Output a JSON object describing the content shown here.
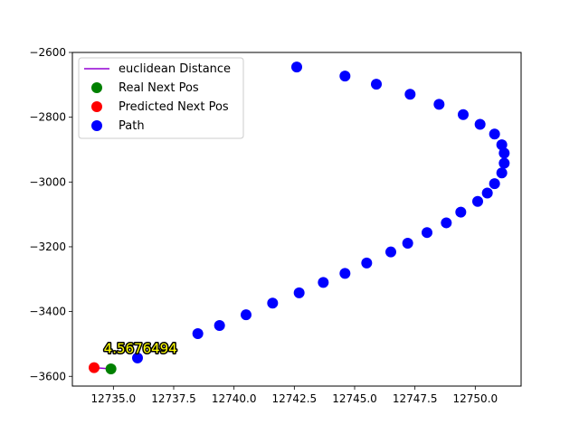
{
  "chart_data": {
    "type": "scatter",
    "title": "",
    "xlabel": "",
    "ylabel": "",
    "xlim": [
      12733.3,
      12751.9
    ],
    "ylim": [
      -3630,
      -2600
    ],
    "xticks": [
      12735.0,
      12737.5,
      12740.0,
      12742.5,
      12745.0,
      12747.5,
      12750.0
    ],
    "xtick_labels": [
      "12735.0",
      "12737.5",
      "12740.0",
      "12742.5",
      "12745.0",
      "12747.5",
      "12750.0"
    ],
    "yticks": [
      -2600,
      -2800,
      -3000,
      -3200,
      -3400,
      -3600
    ],
    "ytick_labels": [
      "−2600",
      "−2800",
      "−3000",
      "−3200",
      "−3400",
      "−3600"
    ],
    "grid": false,
    "legend_position": "top-left",
    "series": [
      {
        "name": "euclidean Distance",
        "kind": "line",
        "color": "#9400d3",
        "points": [
          {
            "x": 12734.2,
            "y": -3573
          },
          {
            "x": 12734.9,
            "y": -3577
          }
        ]
      },
      {
        "name": "Real Next Pos",
        "kind": "scatter",
        "color": "#008000",
        "points": [
          {
            "x": 12734.9,
            "y": -3577
          }
        ]
      },
      {
        "name": "Predicted Next Pos",
        "kind": "scatter",
        "color": "#ff0000",
        "points": [
          {
            "x": 12734.2,
            "y": -3573
          }
        ]
      },
      {
        "name": "Path",
        "kind": "scatter",
        "color": "#0000ff",
        "points": [
          {
            "x": 12742.6,
            "y": -2645
          },
          {
            "x": 12744.6,
            "y": -2673
          },
          {
            "x": 12745.9,
            "y": -2698
          },
          {
            "x": 12747.3,
            "y": -2729
          },
          {
            "x": 12748.5,
            "y": -2760
          },
          {
            "x": 12749.5,
            "y": -2792
          },
          {
            "x": 12750.2,
            "y": -2822
          },
          {
            "x": 12750.8,
            "y": -2852
          },
          {
            "x": 12751.1,
            "y": -2885
          },
          {
            "x": 12751.2,
            "y": -2911
          },
          {
            "x": 12751.2,
            "y": -2942
          },
          {
            "x": 12751.1,
            "y": -2972
          },
          {
            "x": 12750.8,
            "y": -3005
          },
          {
            "x": 12750.5,
            "y": -3034
          },
          {
            "x": 12750.1,
            "y": -3060
          },
          {
            "x": 12749.4,
            "y": -3093
          },
          {
            "x": 12748.8,
            "y": -3126
          },
          {
            "x": 12748.0,
            "y": -3156
          },
          {
            "x": 12747.2,
            "y": -3189
          },
          {
            "x": 12746.5,
            "y": -3216
          },
          {
            "x": 12745.5,
            "y": -3250
          },
          {
            "x": 12744.6,
            "y": -3282
          },
          {
            "x": 12743.7,
            "y": -3310
          },
          {
            "x": 12742.7,
            "y": -3342
          },
          {
            "x": 12741.6,
            "y": -3374
          },
          {
            "x": 12740.5,
            "y": -3410
          },
          {
            "x": 12739.4,
            "y": -3443
          },
          {
            "x": 12738.5,
            "y": -3468
          },
          {
            "x": 12736.0,
            "y": -3543
          }
        ]
      }
    ],
    "annotations": [
      {
        "text": "4.5676494",
        "x": 12734.3,
        "y": -3573,
        "color": "#ffff00",
        "outline": "#000000"
      }
    ]
  }
}
